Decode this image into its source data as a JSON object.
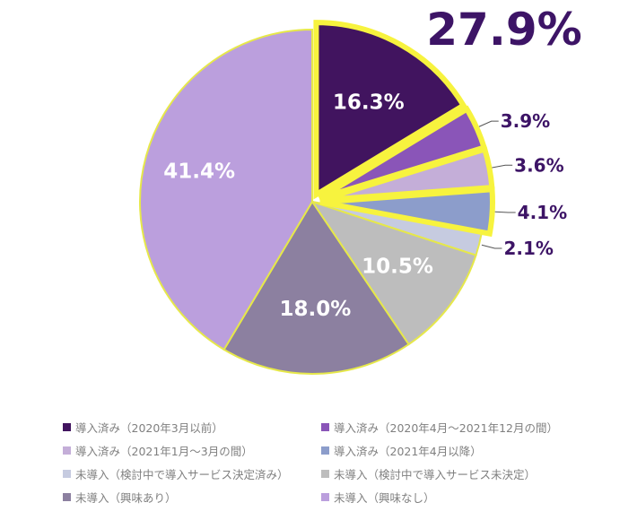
{
  "chart_data": {
    "type": "pie",
    "highlight_total": "27.9%",
    "slices": [
      {
        "label": "導入済み（2020年3月以前）",
        "value": 16.3,
        "display": "16.3%",
        "color": "#41145f",
        "highlighted": true
      },
      {
        "label": "導入済み（2020年4月～2021年12月の間）",
        "value": 3.9,
        "display": "3.9%",
        "color": "#8a55b8",
        "highlighted": true
      },
      {
        "label": "導入済み（2021年1月～3月の間）",
        "value": 3.6,
        "display": "3.6%",
        "color": "#c4aed8",
        "highlighted": true
      },
      {
        "label": "導入済み（2021年4月以降）",
        "value": 4.1,
        "display": "4.1%",
        "color": "#8c9dcb",
        "highlighted": true
      },
      {
        "label": "未導入（検討中で導入サービス決定済み）",
        "value": 2.1,
        "display": "2.1%",
        "color": "#c6cbe0",
        "highlighted": false
      },
      {
        "label": "未導入（検討中で導入サービス未決定）",
        "value": 10.5,
        "display": "10.5%",
        "color": "#bdbdbd",
        "highlighted": false
      },
      {
        "label": "未導入（興味あり）",
        "value": 18.0,
        "display": "18.0%",
        "color": "#8c80a0",
        "highlighted": false
      },
      {
        "label": "未導入（興味なし）",
        "value": 41.4,
        "display": "41.4%",
        "color": "#bb9fdd",
        "highlighted": false
      }
    ],
    "legend_order": [
      0,
      1,
      2,
      3,
      4,
      5,
      6,
      7
    ],
    "legend_placement": "bottom"
  }
}
